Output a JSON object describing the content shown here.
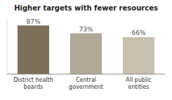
{
  "chart_data": {
    "type": "bar",
    "title": "Higher targets with fewer resources",
    "categories": [
      "District health\nboards",
      "Central\ngovernment",
      "All public\nentities"
    ],
    "values": [
      87,
      73,
      66
    ],
    "value_labels": [
      "87%",
      "73%",
      "66%"
    ],
    "colors": [
      "#7d7058",
      "#b0a898",
      "#c8c0b0"
    ],
    "ylim": [
      0,
      100
    ],
    "data_labels": true,
    "tick_labels": "x",
    "grid": false
  }
}
